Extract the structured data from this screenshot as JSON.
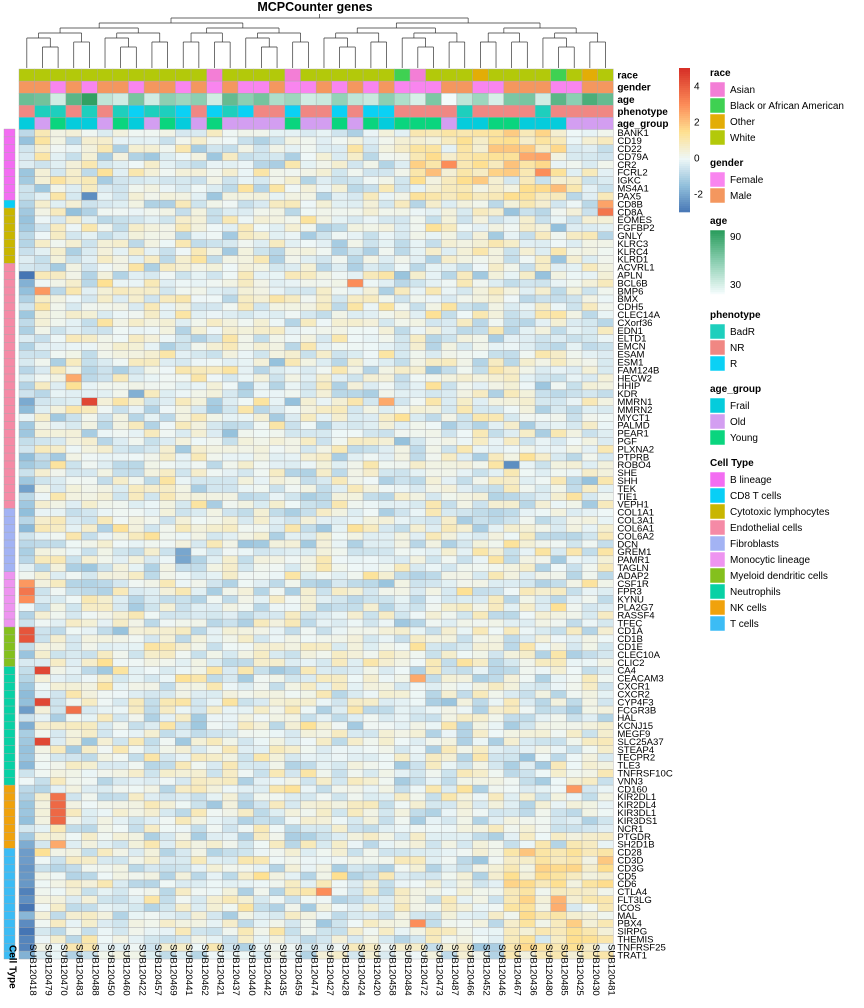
{
  "chart_data": {
    "type": "heatmap",
    "title": "MCPCounter genes",
    "columns": [
      "SUB120418",
      "SUB120479",
      "SUB120470",
      "SUB120483",
      "SUB120488",
      "SUB120450",
      "SUB120460",
      "SUB120422",
      "SUB120457",
      "SUB120469",
      "SUB120441",
      "SUB120462",
      "SUB120421",
      "SUB120437",
      "SUB120440",
      "SUB120442",
      "SUB120435",
      "SUB120459",
      "SUB120474",
      "SUB120427",
      "SUB120428",
      "SUB120424",
      "SUB120420",
      "SUB120458",
      "SUB120484",
      "SUB120472",
      "SUB120473",
      "SUB120487",
      "SUB120466",
      "SUB120452",
      "SUB120446",
      "SUB120467",
      "SUB120436",
      "SUB120480",
      "SUB120485",
      "SUB120425",
      "SUB120430",
      "SUB120481"
    ],
    "row_groups": [
      {
        "cell_type": "B lineage",
        "genes": [
          "BANK1",
          "CD19",
          "CD22",
          "CD79A",
          "CR2",
          "FCRL2",
          "IGKC",
          "MS4A1",
          "PAX5"
        ]
      },
      {
        "cell_type": "CD8 T cells",
        "genes": [
          "CD8B"
        ]
      },
      {
        "cell_type": "Cytotoxic lymphocytes",
        "genes": [
          "CD8A",
          "EOMES",
          "FGFBP2",
          "GNLY",
          "KLRC3",
          "KLRC4",
          "KLRD1"
        ]
      },
      {
        "cell_type": "Endothelial cells",
        "genes": [
          "ACVRL1",
          "APLN",
          "BCL6B",
          "BMP6",
          "BMX",
          "CDH5",
          "CLEC14A",
          "CXorf36",
          "EDN1",
          "ELTD1",
          "EMCN",
          "ESAM",
          "ESM1",
          "FAM124B",
          "HECW2",
          "HHIP",
          "KDR",
          "MMRN1",
          "MMRN2",
          "MYCT1",
          "PALMD",
          "PEAR1",
          "PGF",
          "PLXNA2",
          "PTPRB",
          "ROBO4",
          "SHE",
          "SHH",
          "TEK",
          "TIE1",
          "VEPH1"
        ]
      },
      {
        "cell_type": "Fibroblasts",
        "genes": [
          "COL1A1",
          "COL3A1",
          "COL6A1",
          "COL6A2",
          "DCN",
          "GREM1",
          "PAMR1",
          "TAGLN"
        ]
      },
      {
        "cell_type": "Monocytic lineage",
        "genes": [
          "ADAP2",
          "CSF1R",
          "FPR3",
          "KYNU",
          "PLA2G7",
          "RASSF4",
          "TFEC"
        ]
      },
      {
        "cell_type": "Myeloid dendritic cells",
        "genes": [
          "CD1A",
          "CD1B",
          "CD1E",
          "CLEC10A",
          "CLIC2"
        ]
      },
      {
        "cell_type": "Neutrophils",
        "genes": [
          "CA4",
          "CEACAM3",
          "CXCR1",
          "CXCR2",
          "CYP4F3",
          "FCGR3B",
          "HAL",
          "KCNJ15",
          "MEGF9",
          "SLC25A37",
          "STEAP4",
          "TECPR2",
          "TLE3",
          "TNFRSF10C",
          "VNN3"
        ]
      },
      {
        "cell_type": "NK cells",
        "genes": [
          "CD160",
          "KIR2DL1",
          "KIR2DL4",
          "KIR3DL1",
          "KIR3DS1",
          "NCR1",
          "PTGDR",
          "SH2D1B"
        ]
      },
      {
        "cell_type": "T cells",
        "genes": [
          "CD28",
          "CD3D",
          "CD3G",
          "CD5",
          "CD6",
          "CTLA4",
          "FLT3LG",
          "ICOS",
          "MAL",
          "PBX4",
          "SIRPG",
          "THEMIS",
          "TNFRSF25",
          "TRAT1"
        ]
      }
    ],
    "annotations": {
      "race": [
        "White",
        "White",
        "White",
        "White",
        "White",
        "White",
        "White",
        "White",
        "White",
        "White",
        "White",
        "White",
        "Asian",
        "White",
        "White",
        "White",
        "White",
        "Asian",
        "White",
        "White",
        "White",
        "White",
        "White",
        "White",
        "Black or African American",
        "Asian",
        "White",
        "White",
        "White",
        "Other",
        "White",
        "White",
        "White",
        "White",
        "Black or African American",
        "White",
        "Other",
        "White"
      ],
      "gender": [
        "Male",
        "Male",
        "Female",
        "Male",
        "Female",
        "Male",
        "Male",
        "Female",
        "Male",
        "Male",
        "Female",
        "Male",
        "Female",
        "Male",
        "Female",
        "Female",
        "Male",
        "Female",
        "Female",
        "Male",
        "Female",
        "Male",
        "Female",
        "Male",
        "Female",
        "Female",
        "Female",
        "Male",
        "Male",
        "Female",
        "Female",
        "Male",
        "Male",
        "Male",
        "Female",
        "Female",
        "Male",
        "Male"
      ],
      "age": [
        70,
        68,
        40,
        75,
        88,
        45,
        40,
        66,
        40,
        60,
        55,
        60,
        40,
        72,
        60,
        67,
        50,
        55,
        40,
        42,
        58,
        45,
        42,
        60,
        50,
        38,
        65,
        30,
        45,
        55,
        38,
        65,
        66,
        40,
        75,
        60,
        80,
        72
      ],
      "phenotype": [
        "NR",
        "BadR",
        "BadR",
        "NR",
        "BadR",
        "NR",
        "BadR",
        "R",
        "BadR",
        "BadR",
        "R",
        "NR",
        "R",
        "BadR",
        "R",
        "NR",
        "NR",
        "R",
        "NR",
        "NR",
        "R",
        "NR",
        "R",
        "R",
        "NR",
        "NR",
        "NR",
        "NR",
        "BadR",
        "NR",
        "NR",
        "NR",
        "NR",
        "BadR",
        "NR",
        "NR",
        "NR",
        "NR"
      ],
      "age_group": [
        "Frail",
        "Old",
        "Young",
        "Frail",
        "Frail",
        "Old",
        "Young",
        "Frail",
        "Old",
        "Young",
        "Frail",
        "Old",
        "Young",
        "Old",
        "Old",
        "Old",
        "Old",
        "Young",
        "Old",
        "Old",
        "Young",
        "Old",
        "Young",
        "Frail",
        "Young",
        "Young",
        "Young",
        "Old",
        "Frail",
        "Frail",
        "Young",
        "Young",
        "Frail",
        "Frail",
        "Frail",
        "Old",
        "Old",
        "Old"
      ]
    },
    "scale": {
      "min": -3,
      "max": 5,
      "ticks": [
        -2,
        0,
        2,
        4
      ]
    },
    "legend_placement": "right"
  },
  "annotation_labels": [
    "race",
    "gender",
    "age",
    "phenotype",
    "age_group"
  ],
  "row_annotation_label": "Cell Type",
  "legends": [
    {
      "key": "race",
      "title": "race",
      "items": [
        {
          "label": "Asian",
          "color": "#f37ed6"
        },
        {
          "label": "Black or African American",
          "color": "#3fd152"
        },
        {
          "label": "Other",
          "color": "#e3ad06"
        },
        {
          "label": "White",
          "color": "#b3c90a"
        }
      ]
    },
    {
      "key": "gender",
      "title": "gender",
      "items": [
        {
          "label": "Female",
          "color": "#f985ef"
        },
        {
          "label": "Male",
          "color": "#f4975f"
        }
      ]
    },
    {
      "key": "age",
      "title": "age",
      "gradient": [
        "#2a9d5c",
        "#8ccfb2",
        "#f2fbfb"
      ],
      "labels": [
        "90",
        "30"
      ]
    },
    {
      "key": "phenotype",
      "title": "phenotype",
      "items": [
        {
          "label": "BadR",
          "color": "#1ecfbd"
        },
        {
          "label": "NR",
          "color": "#f08783"
        },
        {
          "label": "R",
          "color": "#0bd1f5"
        }
      ]
    },
    {
      "key": "age_group",
      "title": "age_group",
      "items": [
        {
          "label": "Frail",
          "color": "#05ccdc"
        },
        {
          "label": "Old",
          "color": "#d39ef1"
        },
        {
          "label": "Young",
          "color": "#0ad57e"
        }
      ]
    },
    {
      "key": "cell_type",
      "title": "Cell Type",
      "items": [
        {
          "label": "B lineage",
          "color": "#f36df2"
        },
        {
          "label": "CD8 T cells",
          "color": "#08cff6"
        },
        {
          "label": "Cytotoxic lymphocytes",
          "color": "#c9b600"
        },
        {
          "label": "Endothelial cells",
          "color": "#f58aa6"
        },
        {
          "label": "Fibroblasts",
          "color": "#a3b3f4"
        },
        {
          "label": "Monocytic lineage",
          "color": "#ee94f0"
        },
        {
          "label": "Myeloid dendritic cells",
          "color": "#84c01d"
        },
        {
          "label": "Neutrophils",
          "color": "#08d1a5"
        },
        {
          "label": "NK cells",
          "color": "#f0a20c"
        },
        {
          "label": "T cells",
          "color": "#3cbcf5"
        }
      ]
    }
  ]
}
